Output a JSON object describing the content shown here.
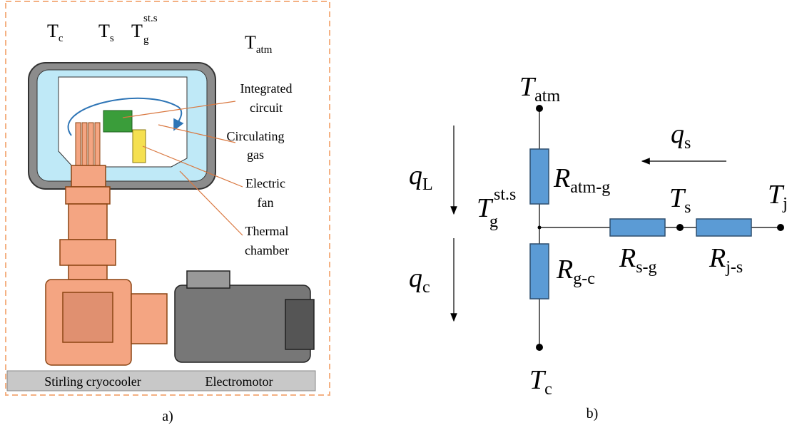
{
  "panel_a": {
    "label": "a)",
    "temperatures": [
      {
        "main": "T",
        "sub": "c"
      },
      {
        "main": "T",
        "sub": "s"
      },
      {
        "main": "T",
        "sub": "g",
        "sup": "st.s"
      },
      {
        "main": "T",
        "sub": "atm"
      }
    ],
    "callouts": [
      [
        "Integrated",
        "circuit"
      ],
      [
        "Circulating",
        "gas"
      ],
      [
        "Electric",
        "fan"
      ],
      [
        "Thermal",
        "chamber"
      ]
    ],
    "base_labels": [
      "Stirling cryocooler",
      "Electromotor"
    ]
  },
  "panel_b": {
    "label": "b)",
    "nodes": [
      {
        "main": "T",
        "sub": "atm"
      },
      {
        "main": "T",
        "sub": "g",
        "sup": "st.s"
      },
      {
        "main": "T",
        "sub": "s"
      },
      {
        "main": "T",
        "sub": "j"
      },
      {
        "main": "T",
        "sub": "c"
      }
    ],
    "resistors": [
      {
        "main": "R",
        "sub": "atm-g"
      },
      {
        "main": "R",
        "sub": "g-c"
      },
      {
        "main": "R",
        "sub": "s-g"
      },
      {
        "main": "R",
        "sub": "j-s"
      }
    ],
    "flows": [
      {
        "main": "q",
        "sub": "s"
      },
      {
        "main": "q",
        "sub": "L"
      },
      {
        "main": "q",
        "sub": "c"
      }
    ]
  }
}
